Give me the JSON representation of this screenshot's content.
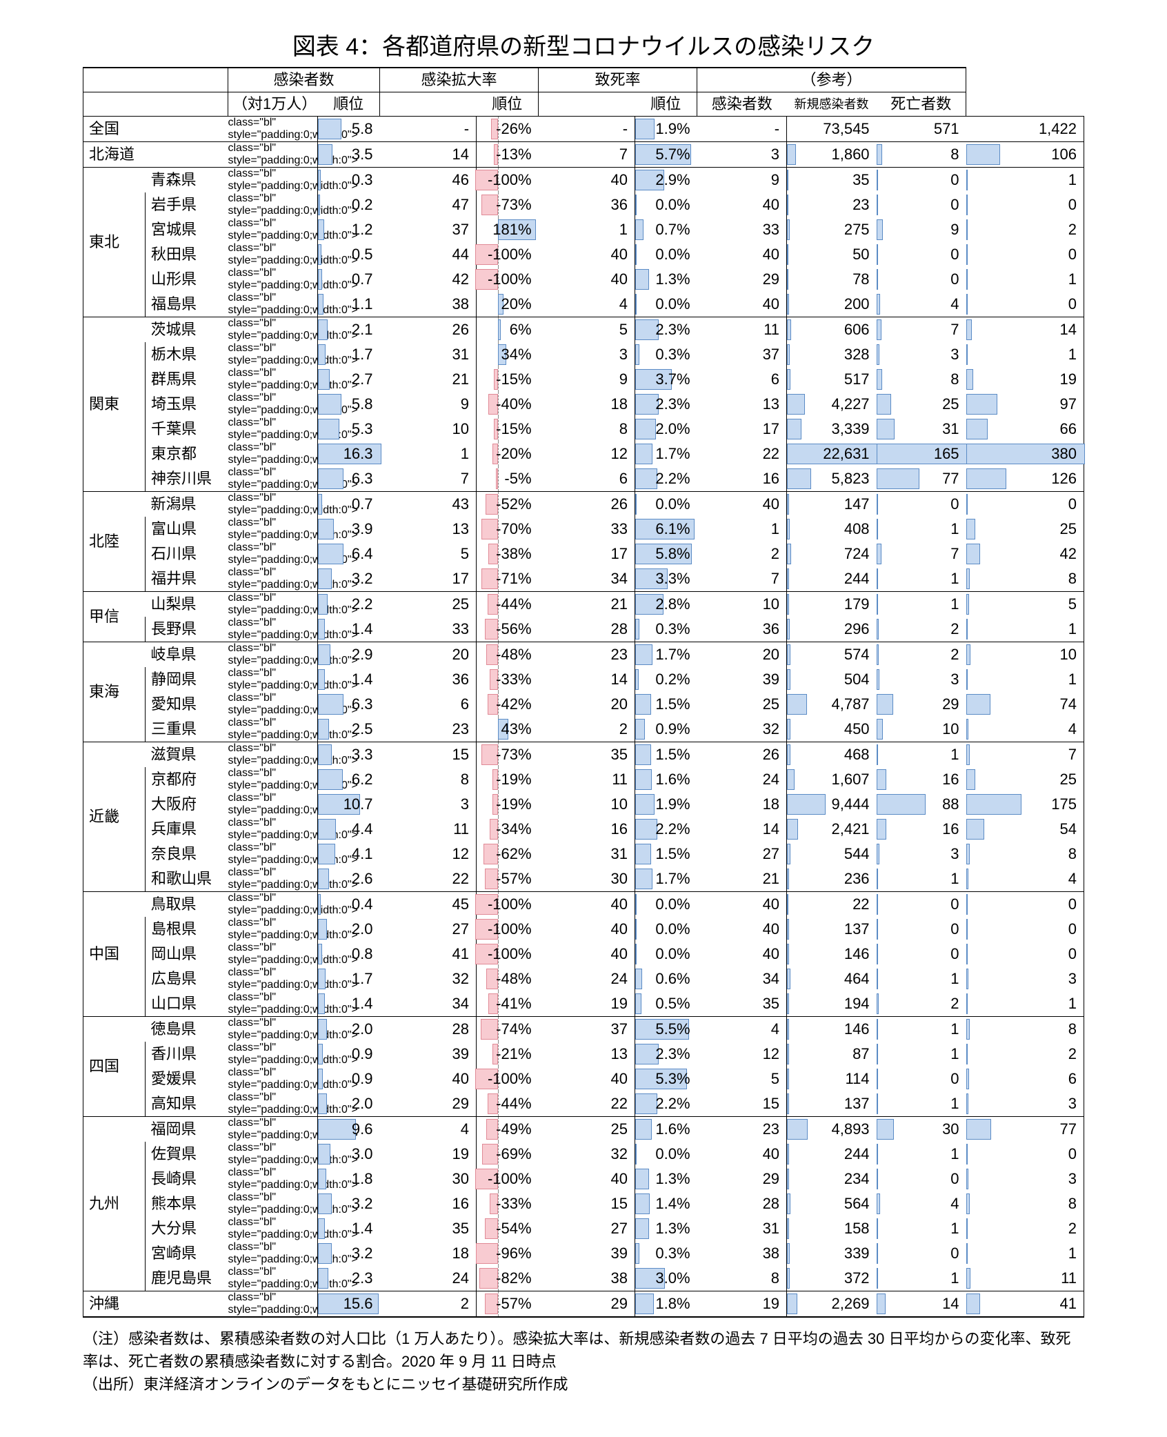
{
  "title": "図表 4：各都道府県の新型コロナウイルスの感染リスク",
  "headers": {
    "group": [
      "感染者数",
      "感染拡大率",
      "致死率",
      "（参考）"
    ],
    "sub": [
      "（対1万人）",
      "順位",
      "順位",
      "順位",
      "感染者数",
      "新規感染者数",
      "死亡者数"
    ]
  },
  "style": {
    "bar_blue_fill": "#c5d9f1",
    "bar_blue_border": "#5b8bc5",
    "bar_pink_fill": "#f8cbd1",
    "bar_pink_border": "#e08a96",
    "infected_max": 16.3,
    "spread_neg_max": 100,
    "spread_pos_max": 200,
    "spread_axis_frac": 0.35,
    "fatality_max": 6.5,
    "cases_max": 22631,
    "new_max": 165,
    "deaths_max": 380
  },
  "rows": [
    {
      "region": "全国",
      "region_span": 1,
      "pref": "",
      "single": true,
      "infected": 5.8,
      "infected_rank": "-",
      "spread": -26,
      "spread_rank": "-",
      "fatality": 1.9,
      "fatality_rank": "-",
      "cases": 73545,
      "new": 571,
      "deaths": 1422,
      "top": true,
      "no_bars_ref": true
    },
    {
      "region": "北海道",
      "region_span": 1,
      "pref": "",
      "single": true,
      "infected": 3.5,
      "infected_rank": 14,
      "spread": -13,
      "spread_rank": 7,
      "fatality": 5.7,
      "fatality_rank": 3,
      "cases": 1860,
      "new": 8,
      "deaths": 106,
      "top": true
    },
    {
      "region": "東北",
      "region_span": 6,
      "pref": "青森県",
      "infected": 0.3,
      "infected_rank": 46,
      "spread": -100,
      "spread_rank": 40,
      "fatality": 2.9,
      "fatality_rank": 9,
      "cases": 35,
      "new": 0,
      "deaths": 1,
      "top": true
    },
    {
      "pref": "岩手県",
      "infected": 0.2,
      "infected_rank": 47,
      "spread": -73,
      "spread_rank": 36,
      "fatality": 0.0,
      "fatality_rank": 40,
      "cases": 23,
      "new": 0,
      "deaths": 0
    },
    {
      "pref": "宮城県",
      "infected": 1.2,
      "infected_rank": 37,
      "spread": 181,
      "spread_rank": 1,
      "fatality": 0.7,
      "fatality_rank": 33,
      "cases": 275,
      "new": 9,
      "deaths": 2
    },
    {
      "pref": "秋田県",
      "infected": 0.5,
      "infected_rank": 44,
      "spread": -100,
      "spread_rank": 40,
      "fatality": 0.0,
      "fatality_rank": 40,
      "cases": 50,
      "new": 0,
      "deaths": 0
    },
    {
      "pref": "山形県",
      "infected": 0.7,
      "infected_rank": 42,
      "spread": -100,
      "spread_rank": 40,
      "fatality": 1.3,
      "fatality_rank": 29,
      "cases": 78,
      "new": 0,
      "deaths": 1
    },
    {
      "pref": "福島県",
      "infected": 1.1,
      "infected_rank": 38,
      "spread": 20,
      "spread_rank": 4,
      "fatality": 0.0,
      "fatality_rank": 40,
      "cases": 200,
      "new": 4,
      "deaths": 0
    },
    {
      "region": "関東",
      "region_span": 7,
      "pref": "茨城県",
      "infected": 2.1,
      "infected_rank": 26,
      "spread": 6,
      "spread_rank": 5,
      "fatality": 2.3,
      "fatality_rank": 11,
      "cases": 606,
      "new": 7,
      "deaths": 14,
      "top": true
    },
    {
      "pref": "栃木県",
      "infected": 1.7,
      "infected_rank": 31,
      "spread": 34,
      "spread_rank": 3,
      "fatality": 0.3,
      "fatality_rank": 37,
      "cases": 328,
      "new": 3,
      "deaths": 1
    },
    {
      "pref": "群馬県",
      "infected": 2.7,
      "infected_rank": 21,
      "spread": -15,
      "spread_rank": 9,
      "fatality": 3.7,
      "fatality_rank": 6,
      "cases": 517,
      "new": 8,
      "deaths": 19
    },
    {
      "pref": "埼玉県",
      "infected": 5.8,
      "infected_rank": 9,
      "spread": -40,
      "spread_rank": 18,
      "fatality": 2.3,
      "fatality_rank": 13,
      "cases": 4227,
      "new": 25,
      "deaths": 97
    },
    {
      "pref": "千葉県",
      "infected": 5.3,
      "infected_rank": 10,
      "spread": -15,
      "spread_rank": 8,
      "fatality": 2.0,
      "fatality_rank": 17,
      "cases": 3339,
      "new": 31,
      "deaths": 66
    },
    {
      "pref": "東京都",
      "infected": 16.3,
      "infected_rank": 1,
      "spread": -20,
      "spread_rank": 12,
      "fatality": 1.7,
      "fatality_rank": 22,
      "cases": 22631,
      "new": 165,
      "deaths": 380
    },
    {
      "pref": "神奈川県",
      "infected": 6.3,
      "infected_rank": 7,
      "spread": -5,
      "spread_rank": 6,
      "fatality": 2.2,
      "fatality_rank": 16,
      "cases": 5823,
      "new": 77,
      "deaths": 126
    },
    {
      "region": "北陸",
      "region_span": 4,
      "pref": "新潟県",
      "infected": 0.7,
      "infected_rank": 43,
      "spread": -52,
      "spread_rank": 26,
      "fatality": 0.0,
      "fatality_rank": 40,
      "cases": 147,
      "new": 0,
      "deaths": 0,
      "top": true
    },
    {
      "pref": "富山県",
      "infected": 3.9,
      "infected_rank": 13,
      "spread": -70,
      "spread_rank": 33,
      "fatality": 6.1,
      "fatality_rank": 1,
      "cases": 408,
      "new": 1,
      "deaths": 25
    },
    {
      "pref": "石川県",
      "infected": 6.4,
      "infected_rank": 5,
      "spread": -38,
      "spread_rank": 17,
      "fatality": 5.8,
      "fatality_rank": 2,
      "cases": 724,
      "new": 7,
      "deaths": 42
    },
    {
      "pref": "福井県",
      "infected": 3.2,
      "infected_rank": 17,
      "spread": -71,
      "spread_rank": 34,
      "fatality": 3.3,
      "fatality_rank": 7,
      "cases": 244,
      "new": 1,
      "deaths": 8
    },
    {
      "region": "甲信",
      "region_span": 2,
      "pref": "山梨県",
      "infected": 2.2,
      "infected_rank": 25,
      "spread": -44,
      "spread_rank": 21,
      "fatality": 2.8,
      "fatality_rank": 10,
      "cases": 179,
      "new": 1,
      "deaths": 5,
      "top": true
    },
    {
      "pref": "長野県",
      "infected": 1.4,
      "infected_rank": 33,
      "spread": -56,
      "spread_rank": 28,
      "fatality": 0.3,
      "fatality_rank": 36,
      "cases": 296,
      "new": 2,
      "deaths": 1
    },
    {
      "region": "東海",
      "region_span": 4,
      "pref": "岐阜県",
      "infected": 2.9,
      "infected_rank": 20,
      "spread": -48,
      "spread_rank": 23,
      "fatality": 1.7,
      "fatality_rank": 20,
      "cases": 574,
      "new": 2,
      "deaths": 10,
      "top": true
    },
    {
      "pref": "静岡県",
      "infected": 1.4,
      "infected_rank": 36,
      "spread": -33,
      "spread_rank": 14,
      "fatality": 0.2,
      "fatality_rank": 39,
      "cases": 504,
      "new": 3,
      "deaths": 1
    },
    {
      "pref": "愛知県",
      "infected": 6.3,
      "infected_rank": 6,
      "spread": -42,
      "spread_rank": 20,
      "fatality": 1.5,
      "fatality_rank": 25,
      "cases": 4787,
      "new": 29,
      "deaths": 74
    },
    {
      "pref": "三重県",
      "infected": 2.5,
      "infected_rank": 23,
      "spread": 43,
      "spread_rank": 2,
      "fatality": 0.9,
      "fatality_rank": 32,
      "cases": 450,
      "new": 10,
      "deaths": 4
    },
    {
      "region": "近畿",
      "region_span": 6,
      "pref": "滋賀県",
      "infected": 3.3,
      "infected_rank": 15,
      "spread": -73,
      "spread_rank": 35,
      "fatality": 1.5,
      "fatality_rank": 26,
      "cases": 468,
      "new": 1,
      "deaths": 7,
      "top": true
    },
    {
      "pref": "京都府",
      "infected": 6.2,
      "infected_rank": 8,
      "spread": -19,
      "spread_rank": 11,
      "fatality": 1.6,
      "fatality_rank": 24,
      "cases": 1607,
      "new": 16,
      "deaths": 25
    },
    {
      "pref": "大阪府",
      "infected": 10.7,
      "infected_rank": 3,
      "spread": -19,
      "spread_rank": 10,
      "fatality": 1.9,
      "fatality_rank": 18,
      "cases": 9444,
      "new": 88,
      "deaths": 175
    },
    {
      "pref": "兵庫県",
      "infected": 4.4,
      "infected_rank": 11,
      "spread": -34,
      "spread_rank": 16,
      "fatality": 2.2,
      "fatality_rank": 14,
      "cases": 2421,
      "new": 16,
      "deaths": 54
    },
    {
      "pref": "奈良県",
      "infected": 4.1,
      "infected_rank": 12,
      "spread": -62,
      "spread_rank": 31,
      "fatality": 1.5,
      "fatality_rank": 27,
      "cases": 544,
      "new": 3,
      "deaths": 8
    },
    {
      "pref": "和歌山県",
      "infected": 2.6,
      "infected_rank": 22,
      "spread": -57,
      "spread_rank": 30,
      "fatality": 1.7,
      "fatality_rank": 21,
      "cases": 236,
      "new": 1,
      "deaths": 4
    },
    {
      "region": "中国",
      "region_span": 5,
      "pref": "鳥取県",
      "infected": 0.4,
      "infected_rank": 45,
      "spread": -100,
      "spread_rank": 40,
      "fatality": 0.0,
      "fatality_rank": 40,
      "cases": 22,
      "new": 0,
      "deaths": 0,
      "top": true
    },
    {
      "pref": "島根県",
      "infected": 2.0,
      "infected_rank": 27,
      "spread": -100,
      "spread_rank": 40,
      "fatality": 0.0,
      "fatality_rank": 40,
      "cases": 137,
      "new": 0,
      "deaths": 0
    },
    {
      "pref": "岡山県",
      "infected": 0.8,
      "infected_rank": 41,
      "spread": -100,
      "spread_rank": 40,
      "fatality": 0.0,
      "fatality_rank": 40,
      "cases": 146,
      "new": 0,
      "deaths": 0
    },
    {
      "pref": "広島県",
      "infected": 1.7,
      "infected_rank": 32,
      "spread": -48,
      "spread_rank": 24,
      "fatality": 0.6,
      "fatality_rank": 34,
      "cases": 464,
      "new": 1,
      "deaths": 3
    },
    {
      "pref": "山口県",
      "infected": 1.4,
      "infected_rank": 34,
      "spread": -41,
      "spread_rank": 19,
      "fatality": 0.5,
      "fatality_rank": 35,
      "cases": 194,
      "new": 2,
      "deaths": 1
    },
    {
      "region": "四国",
      "region_span": 4,
      "pref": "徳島県",
      "infected": 2.0,
      "infected_rank": 28,
      "spread": -74,
      "spread_rank": 37,
      "fatality": 5.5,
      "fatality_rank": 4,
      "cases": 146,
      "new": 1,
      "deaths": 8,
      "top": true
    },
    {
      "pref": "香川県",
      "infected": 0.9,
      "infected_rank": 39,
      "spread": -21,
      "spread_rank": 13,
      "fatality": 2.3,
      "fatality_rank": 12,
      "cases": 87,
      "new": 1,
      "deaths": 2
    },
    {
      "pref": "愛媛県",
      "infected": 0.9,
      "infected_rank": 40,
      "spread": -100,
      "spread_rank": 40,
      "fatality": 5.3,
      "fatality_rank": 5,
      "cases": 114,
      "new": 0,
      "deaths": 6
    },
    {
      "pref": "高知県",
      "infected": 2.0,
      "infected_rank": 29,
      "spread": -44,
      "spread_rank": 22,
      "fatality": 2.2,
      "fatality_rank": 15,
      "cases": 137,
      "new": 1,
      "deaths": 3
    },
    {
      "region": "九州",
      "region_span": 7,
      "pref": "福岡県",
      "infected": 9.6,
      "infected_rank": 4,
      "spread": -49,
      "spread_rank": 25,
      "fatality": 1.6,
      "fatality_rank": 23,
      "cases": 4893,
      "new": 30,
      "deaths": 77,
      "top": true
    },
    {
      "pref": "佐賀県",
      "infected": 3.0,
      "infected_rank": 19,
      "spread": -69,
      "spread_rank": 32,
      "fatality": 0.0,
      "fatality_rank": 40,
      "cases": 244,
      "new": 1,
      "deaths": 0
    },
    {
      "pref": "長崎県",
      "infected": 1.8,
      "infected_rank": 30,
      "spread": -100,
      "spread_rank": 40,
      "fatality": 1.3,
      "fatality_rank": 29,
      "cases": 234,
      "new": 0,
      "deaths": 3
    },
    {
      "pref": "熊本県",
      "infected": 3.2,
      "infected_rank": 16,
      "spread": -33,
      "spread_rank": 15,
      "fatality": 1.4,
      "fatality_rank": 28,
      "cases": 564,
      "new": 4,
      "deaths": 8
    },
    {
      "pref": "大分県",
      "infected": 1.4,
      "infected_rank": 35,
      "spread": -54,
      "spread_rank": 27,
      "fatality": 1.3,
      "fatality_rank": 31,
      "cases": 158,
      "new": 1,
      "deaths": 2
    },
    {
      "pref": "宮崎県",
      "infected": 3.2,
      "infected_rank": 18,
      "spread": -96,
      "spread_rank": 39,
      "fatality": 0.3,
      "fatality_rank": 38,
      "cases": 339,
      "new": 0,
      "deaths": 1
    },
    {
      "pref": "鹿児島県",
      "infected": 2.3,
      "infected_rank": 24,
      "spread": -82,
      "spread_rank": 38,
      "fatality": 3.0,
      "fatality_rank": 8,
      "cases": 372,
      "new": 1,
      "deaths": 11
    },
    {
      "region": "沖縄",
      "region_span": 1,
      "pref": "",
      "single": true,
      "infected": 15.6,
      "infected_rank": 2,
      "spread": -57,
      "spread_rank": 29,
      "fatality": 1.8,
      "fatality_rank": 19,
      "cases": 2269,
      "new": 14,
      "deaths": 41,
      "top": true,
      "bottom": true
    }
  ],
  "notes": [
    "（注）感染者数は、累積感染者数の対人口比（1 万人あたり）。感染拡大率は、新規感染者数の過去 7 日平均の過去 30 日平均からの変化率、致死率は、死亡者数の累積感染者数に対する割合。2020 年 9 月 11 日時点",
    "（出所）東洋経済オンラインのデータをもとにニッセイ基礎研究所作成"
  ]
}
